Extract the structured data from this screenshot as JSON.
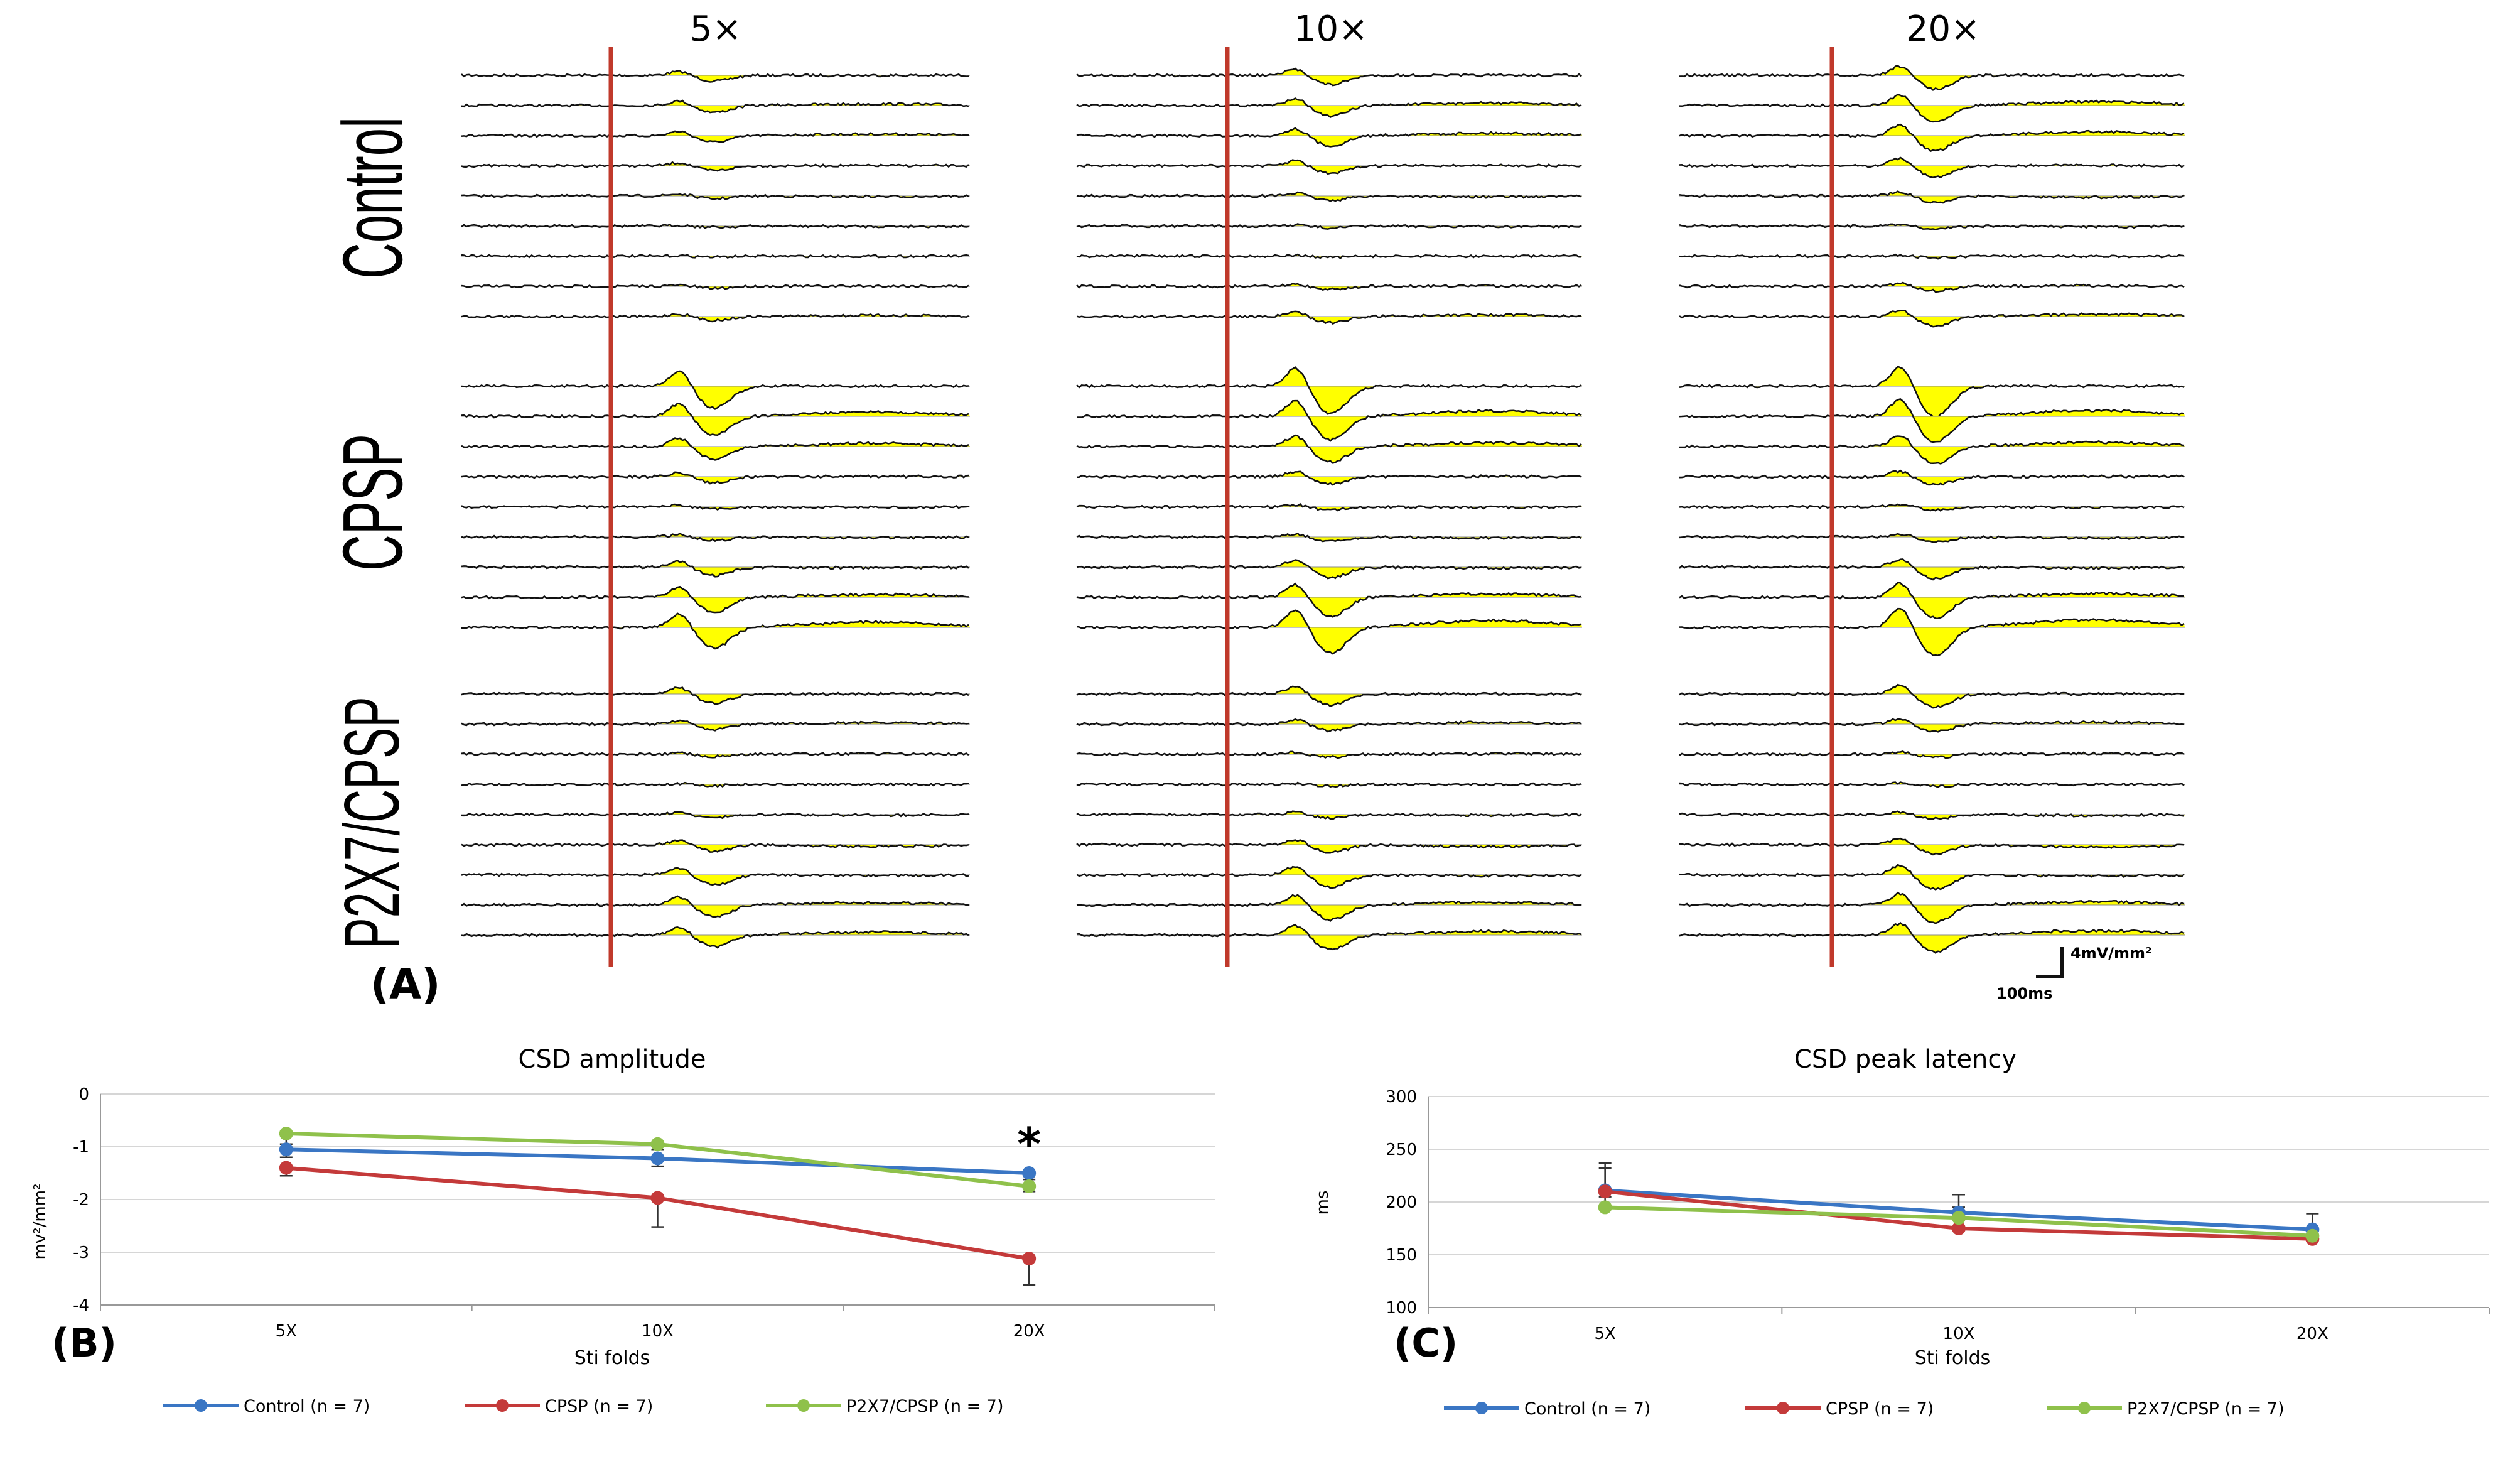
{
  "panel_a": {
    "label": "(A)",
    "column_headers": [
      "5×",
      "10×",
      "20×"
    ],
    "row_labels": [
      "Control",
      "CPSP",
      "P2X7/CPSP"
    ],
    "traces_per_panel": 9,
    "scale_bar": {
      "vertical_label": "4mV/mm²",
      "horizontal_label": "100ms"
    },
    "colors": {
      "stimulus_line": "#c0392b",
      "fill": "#ffff00",
      "trace": "#111111"
    }
  },
  "panel_b": {
    "label": "(B)"
  },
  "panel_c": {
    "label": "(C)"
  },
  "chart_data": [
    {
      "type": "line",
      "title": "CSD amplitude",
      "xlabel": "Sti folds",
      "ylabel": "mv²/mm²",
      "categories": [
        "5X",
        "10X",
        "20X"
      ],
      "ylim": [
        -4,
        0
      ],
      "yticks": [
        "0",
        "-1",
        "-2",
        "-3",
        "-4"
      ],
      "ytick_values": [
        0,
        -1,
        -2,
        -3,
        -4
      ],
      "grid": true,
      "annotation": {
        "text": "*",
        "category": "20X"
      },
      "series": [
        {
          "name": "Control (n = 7)",
          "color": "#3a76c4",
          "values": [
            -1.05,
            -1.22,
            -1.5
          ],
          "errors": [
            0.15,
            0.15,
            0.12
          ]
        },
        {
          "name": "CPSP (n = 7)",
          "color": "#c43a3a",
          "values": [
            -1.4,
            -1.97,
            -3.12
          ],
          "errors": [
            0.15,
            0.55,
            0.5
          ]
        },
        {
          "name": "P2X7/CPSP (n = 7)",
          "color": "#8fc14b",
          "values": [
            -0.75,
            -0.95,
            -1.75
          ],
          "errors": [
            0.2,
            0.1,
            0.1
          ]
        }
      ]
    },
    {
      "type": "line",
      "title": "CSD peak latency",
      "xlabel": "Sti folds",
      "ylabel": "ms",
      "categories": [
        "5X",
        "10X",
        "20X"
      ],
      "ylim": [
        100,
        300
      ],
      "yticks": [
        "300",
        "250",
        "200",
        "150",
        "100"
      ],
      "ytick_values": [
        300,
        250,
        200,
        150,
        100
      ],
      "grid": true,
      "series": [
        {
          "name": "Control (n = 7)",
          "color": "#3a76c4",
          "values": [
            211,
            190,
            174
          ],
          "errors": [
            26,
            17,
            15
          ]
        },
        {
          "name": "CPSP (n = 7)",
          "color": "#c43a3a",
          "values": [
            210,
            175,
            165
          ],
          "errors": [
            22,
            10,
            5
          ]
        },
        {
          "name": "P2X7/CPSP (n = 7)",
          "color": "#8fc14b",
          "values": [
            195,
            185,
            168
          ],
          "errors": [
            10,
            10,
            8
          ]
        }
      ]
    }
  ]
}
